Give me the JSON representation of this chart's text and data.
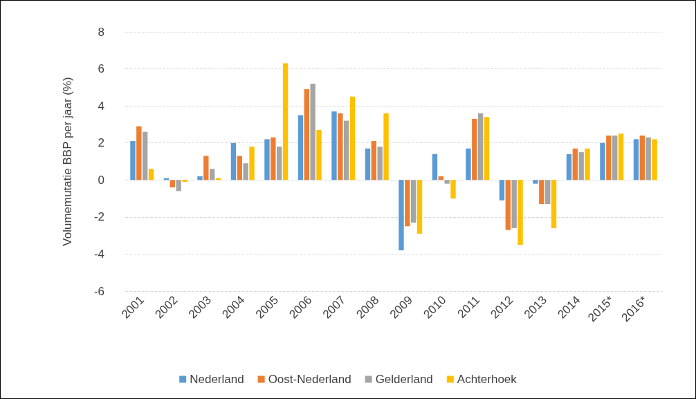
{
  "chart_data": {
    "type": "bar",
    "ylabel": "Volumemutatie BBP per jaar (%)",
    "categories": [
      "2001",
      "2002",
      "2003",
      "2004",
      "2005",
      "2006",
      "2007",
      "2008",
      "2009",
      "2010",
      "2011",
      "2012",
      "2013",
      "2014",
      "2015*",
      "2016*"
    ],
    "series": [
      {
        "name": "Nederland",
        "color": "#5b9bd5",
        "values": [
          2.1,
          0.1,
          0.2,
          2.0,
          2.2,
          3.5,
          3.7,
          1.7,
          -3.8,
          1.4,
          1.7,
          -1.1,
          -0.2,
          1.4,
          2.0,
          2.2
        ]
      },
      {
        "name": "Oost-Nederland",
        "color": "#ed7d31",
        "values": [
          2.9,
          -0.4,
          1.3,
          1.3,
          2.3,
          4.9,
          3.6,
          2.1,
          -2.5,
          0.2,
          3.3,
          -2.7,
          -1.3,
          1.7,
          2.4,
          2.4
        ]
      },
      {
        "name": "Gelderland",
        "color": "#a5a5a5",
        "values": [
          2.6,
          -0.6,
          0.6,
          0.9,
          1.8,
          5.2,
          3.2,
          1.8,
          -2.3,
          -0.2,
          3.6,
          -2.6,
          -1.3,
          1.5,
          2.4,
          2.3
        ]
      },
      {
        "name": "Achterhoek",
        "color": "#ffc000",
        "values": [
          0.6,
          -0.1,
          0.1,
          1.8,
          6.3,
          2.7,
          4.5,
          3.6,
          -2.9,
          -1.0,
          3.4,
          -3.5,
          -2.6,
          1.7,
          2.5,
          2.2
        ]
      }
    ],
    "ylim": [
      -6,
      8
    ],
    "yticks": [
      -6,
      -4,
      -2,
      0,
      2,
      4,
      6,
      8
    ],
    "grid": "y",
    "legend": "bottom"
  }
}
